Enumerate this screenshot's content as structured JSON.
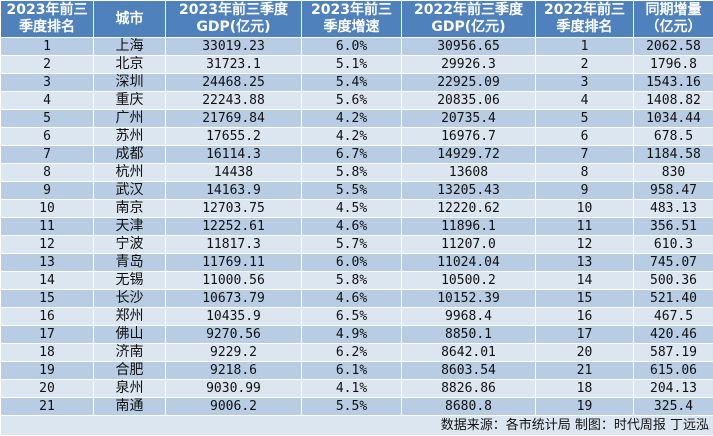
{
  "table": {
    "headers": [
      "2023年前三季度排名",
      "城市",
      "2023年前三季度GDP(亿元)",
      "2023年前三季度增速",
      "2022年前三季度GDP(亿元)",
      "2022年前三季度排名",
      "同期增量（亿元)"
    ],
    "header_lines": [
      [
        "2023年前三",
        "季度排名"
      ],
      [
        "城市"
      ],
      [
        "2023年前三季度",
        "GDP(亿元)"
      ],
      [
        "2023年前三",
        "季度增速"
      ],
      [
        "2022年前三季度",
        "GDP(亿元)"
      ],
      [
        "2022年前三",
        "季度排名"
      ],
      [
        "同期增量",
        "（亿元）"
      ]
    ],
    "rows": [
      [
        "1",
        "上海",
        "33019.23",
        "6.0%",
        "30956.65",
        "1",
        "2062.58"
      ],
      [
        "2",
        "北京",
        "31723.1",
        "5.1%",
        "29926.3",
        "2",
        "1796.8"
      ],
      [
        "3",
        "深圳",
        "24468.25",
        "5.4%",
        "22925.09",
        "3",
        "1543.16"
      ],
      [
        "4",
        "重庆",
        "22243.88",
        "5.6%",
        "20835.06",
        "4",
        "1408.82"
      ],
      [
        "5",
        "广州",
        "21769.84",
        "4.2%",
        "20735.4",
        "5",
        "1034.44"
      ],
      [
        "6",
        "苏州",
        "17655.2",
        "4.2%",
        "16976.7",
        "6",
        "678.5"
      ],
      [
        "7",
        "成都",
        "16114.3",
        "6.7%",
        "14929.72",
        "7",
        "1184.58"
      ],
      [
        "8",
        "杭州",
        "14438",
        "5.8%",
        "13608",
        "8",
        "830"
      ],
      [
        "9",
        "武汉",
        "14163.9",
        "5.5%",
        "13205.43",
        "9",
        "958.47"
      ],
      [
        "10",
        "南京",
        "12703.75",
        "4.5%",
        "12220.62",
        "10",
        "483.13"
      ],
      [
        "11",
        "天津",
        "12252.61",
        "4.6%",
        "11896.1",
        "11",
        "356.51"
      ],
      [
        "12",
        "宁波",
        "11817.3",
        "5.7%",
        "11207.0",
        "12",
        "610.3"
      ],
      [
        "13",
        "青岛",
        "11769.11",
        "6.0%",
        "11024.04",
        "13",
        "745.07"
      ],
      [
        "14",
        "无锡",
        "11000.56",
        "5.8%",
        "10500.2",
        "14",
        "500.36"
      ],
      [
        "15",
        "长沙",
        "10673.79",
        "4.6%",
        "10152.39",
        "15",
        "521.40"
      ],
      [
        "16",
        "郑州",
        "10435.9",
        "6.5%",
        "9968.4",
        "16",
        "467.5"
      ],
      [
        "17",
        "佛山",
        "9270.56",
        "4.9%",
        "8850.1",
        "17",
        "420.46"
      ],
      [
        "18",
        "济南",
        "9229.2",
        "6.2%",
        "8642.01",
        "20",
        "587.19"
      ],
      [
        "19",
        "合肥",
        "9218.6",
        "6.1%",
        "8603.54",
        "21",
        "615.06"
      ],
      [
        "20",
        "泉州",
        "9030.99",
        "4.1%",
        "8826.86",
        "18",
        "204.13"
      ],
      [
        "21",
        "南通",
        "9006.2",
        "5.5%",
        "8680.8",
        "19",
        "325.4"
      ]
    ],
    "footer": "数据来源：各市统计局  制图：时代周报  丁远泓"
  },
  "colors": {
    "header_bg": "#4f81bd",
    "row_odd": "#b8cce4",
    "row_even": "#dce6f1"
  }
}
